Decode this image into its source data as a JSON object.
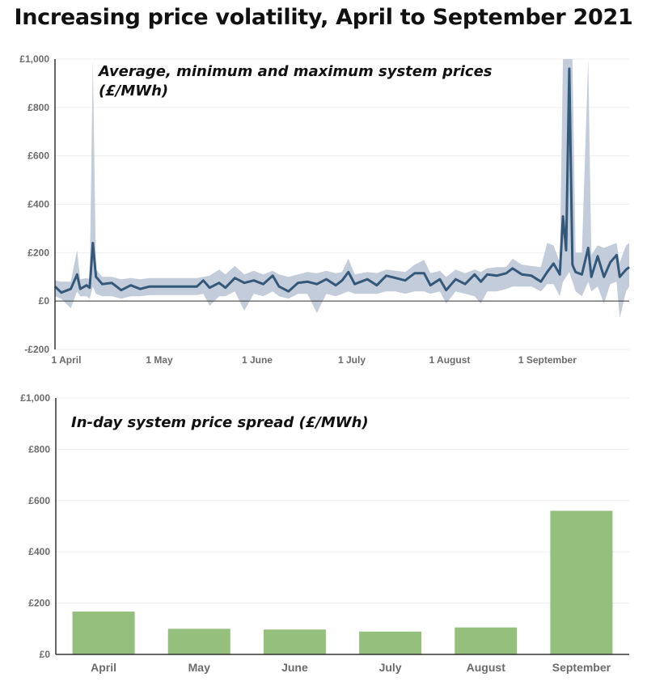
{
  "title": "Increasing price volatility, April to September 2021",
  "colors": {
    "line": "#34587a",
    "band": "#c3ccda",
    "bar": "#95bf7c",
    "axis": "#333333",
    "grid": "#eeeeee"
  },
  "chart_data": [
    {
      "type": "line",
      "annotation": [
        "Average, minimum and maximum system prices",
        "(£/MWh)"
      ],
      "xlim": [
        "2021-04-01",
        "2021-09-30"
      ],
      "ylim": [
        -200,
        1000
      ],
      "yticks": [
        -200,
        0,
        200,
        400,
        600,
        800,
        1000
      ],
      "ytick_labels": [
        "-£200",
        "£0",
        "£200",
        "£400",
        "£600",
        "£800",
        "£1,000"
      ],
      "xticks": [
        "2021-04-01",
        "2021-05-01",
        "2021-06-01",
        "2021-07-01",
        "2021-08-01",
        "2021-09-01"
      ],
      "xtick_labels": [
        "1 April",
        "1 May",
        "1 June",
        "1 July",
        "1 August",
        "1 September"
      ],
      "grid": true,
      "series": [
        {
          "columns": [
            "date",
            "average",
            "minimum",
            "maximum"
          ],
          "points": [
            [
              "2021-04-01",
              60,
              20,
              85
            ],
            [
              "2021-04-03",
              35,
              10,
              80
            ],
            [
              "2021-04-06",
              50,
              -30,
              80
            ],
            [
              "2021-04-08",
              110,
              40,
              210
            ],
            [
              "2021-04-09",
              50,
              20,
              90
            ],
            [
              "2021-04-11",
              65,
              20,
              95
            ],
            [
              "2021-04-12",
              55,
              10,
              90
            ],
            [
              "2021-04-13",
              240,
              60,
              1100
            ],
            [
              "2021-04-14",
              100,
              30,
              130
            ],
            [
              "2021-04-16",
              70,
              20,
              100
            ],
            [
              "2021-04-19",
              75,
              20,
              100
            ],
            [
              "2021-04-22",
              45,
              10,
              90
            ],
            [
              "2021-04-25",
              65,
              20,
              95
            ],
            [
              "2021-04-28",
              50,
              20,
              90
            ],
            [
              "2021-05-01",
              60,
              25,
              95
            ],
            [
              "2021-05-10",
              60,
              25,
              95
            ],
            [
              "2021-05-16",
              60,
              25,
              95
            ],
            [
              "2021-05-18",
              85,
              30,
              100
            ],
            [
              "2021-05-20",
              55,
              -20,
              105
            ],
            [
              "2021-05-23",
              75,
              20,
              130
            ],
            [
              "2021-05-25",
              55,
              20,
              110
            ],
            [
              "2021-05-28",
              95,
              40,
              145
            ],
            [
              "2021-05-31",
              75,
              -40,
              110
            ],
            [
              "2021-06-03",
              85,
              30,
              125
            ],
            [
              "2021-06-06",
              70,
              20,
              110
            ],
            [
              "2021-06-09",
              105,
              40,
              125
            ],
            [
              "2021-06-11",
              60,
              20,
              110
            ],
            [
              "2021-06-14",
              40,
              10,
              100
            ],
            [
              "2021-06-17",
              75,
              30,
              110
            ],
            [
              "2021-06-20",
              80,
              30,
              120
            ],
            [
              "2021-06-23",
              70,
              -50,
              115
            ],
            [
              "2021-06-26",
              90,
              30,
              125
            ],
            [
              "2021-06-29",
              65,
              20,
              115
            ],
            [
              "2021-07-01",
              85,
              30,
              120
            ],
            [
              "2021-07-03",
              120,
              40,
              175
            ],
            [
              "2021-07-05",
              70,
              30,
              110
            ],
            [
              "2021-07-09",
              90,
              30,
              120
            ],
            [
              "2021-07-12",
              65,
              30,
              115
            ],
            [
              "2021-07-15",
              105,
              40,
              130
            ],
            [
              "2021-07-18",
              95,
              40,
              125
            ],
            [
              "2021-07-21",
              85,
              30,
              120
            ],
            [
              "2021-07-24",
              115,
              40,
              150
            ],
            [
              "2021-07-27",
              115,
              40,
              170
            ],
            [
              "2021-07-29",
              65,
              30,
              115
            ],
            [
              "2021-08-01",
              90,
              40,
              125
            ],
            [
              "2021-08-03",
              45,
              -10,
              100
            ],
            [
              "2021-08-06",
              90,
              40,
              130
            ],
            [
              "2021-08-09",
              70,
              30,
              115
            ],
            [
              "2021-08-12",
              110,
              20,
              130
            ],
            [
              "2021-08-14",
              80,
              -10,
              120
            ],
            [
              "2021-08-16",
              110,
              40,
              135
            ],
            [
              "2021-08-19",
              105,
              40,
              140
            ],
            [
              "2021-08-22",
              115,
              50,
              140
            ],
            [
              "2021-08-24",
              135,
              60,
              175
            ],
            [
              "2021-08-27",
              110,
              60,
              150
            ],
            [
              "2021-08-30",
              105,
              60,
              145
            ],
            [
              "2021-09-02",
              80,
              40,
              140
            ],
            [
              "2021-09-04",
              120,
              70,
              240
            ],
            [
              "2021-09-06",
              155,
              70,
              230
            ],
            [
              "2021-09-08",
              110,
              20,
              160
            ],
            [
              "2021-09-09",
              350,
              80,
              1100
            ],
            [
              "2021-09-10",
              210,
              100,
              1100
            ],
            [
              "2021-09-11",
              960,
              120,
              1100
            ],
            [
              "2021-09-12",
              150,
              80,
              1100
            ],
            [
              "2021-09-13",
              120,
              40,
              200
            ],
            [
              "2021-09-15",
              110,
              20,
              200
            ],
            [
              "2021-09-17",
              220,
              80,
              1100
            ],
            [
              "2021-09-18",
              100,
              40,
              190
            ],
            [
              "2021-09-20",
              185,
              60,
              230
            ],
            [
              "2021-09-22",
              100,
              -10,
              220
            ],
            [
              "2021-09-24",
              160,
              70,
              230
            ],
            [
              "2021-09-26",
              190,
              80,
              240
            ],
            [
              "2021-09-27",
              100,
              -70,
              160
            ],
            [
              "2021-09-29",
              130,
              40,
              230
            ],
            [
              "2021-09-30",
              140,
              60,
              240
            ]
          ]
        }
      ]
    },
    {
      "type": "bar",
      "annotation": "In-day system price spread (£/MWh)",
      "categories": [
        "April",
        "May",
        "June",
        "July",
        "August",
        "September"
      ],
      "values": [
        167,
        100,
        97,
        89,
        105,
        560
      ],
      "ylim": [
        0,
        1000
      ],
      "yticks": [
        0,
        200,
        400,
        600,
        800,
        1000
      ],
      "ytick_labels": [
        "£0",
        "£200",
        "£400",
        "£600",
        "£800",
        "£1,000"
      ],
      "grid": true
    }
  ]
}
